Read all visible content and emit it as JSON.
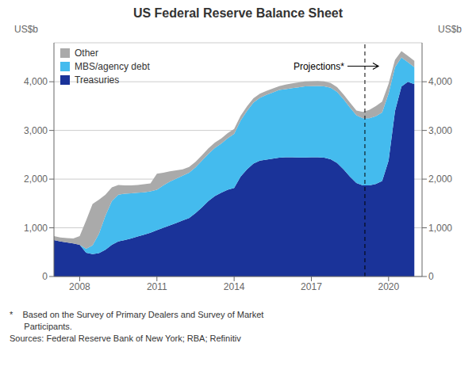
{
  "chart_data": {
    "type": "area",
    "stacked": true,
    "title": "US Federal Reserve Balance Sheet",
    "ylabel": "US$b",
    "y2label": "US$b",
    "x": [
      2007.0,
      2007.25,
      2007.5,
      2007.75,
      2008.0,
      2008.25,
      2008.5,
      2008.75,
      2009.0,
      2009.25,
      2009.5,
      2009.75,
      2010.0,
      2010.25,
      2010.5,
      2010.75,
      2011.0,
      2011.25,
      2011.5,
      2011.75,
      2012.0,
      2012.25,
      2012.5,
      2012.75,
      2013.0,
      2013.25,
      2013.5,
      2013.75,
      2014.0,
      2014.25,
      2014.5,
      2014.75,
      2015.0,
      2015.25,
      2015.5,
      2015.75,
      2016.0,
      2016.25,
      2016.5,
      2016.75,
      2017.0,
      2017.25,
      2017.5,
      2017.75,
      2018.0,
      2018.25,
      2018.5,
      2018.75,
      2019.0,
      2019.25,
      2019.5,
      2019.75,
      2020.0,
      2020.25,
      2020.5,
      2020.75,
      2021.0
    ],
    "series": [
      {
        "name": "Treasuries",
        "color": "#1A3399",
        "values": [
          750,
          720,
          700,
          680,
          650,
          490,
          460,
          480,
          550,
          650,
          720,
          750,
          780,
          820,
          860,
          900,
          950,
          1000,
          1050,
          1100,
          1150,
          1200,
          1300,
          1420,
          1550,
          1650,
          1720,
          1780,
          1820,
          2050,
          2200,
          2320,
          2380,
          2400,
          2420,
          2440,
          2450,
          2450,
          2445,
          2445,
          2450,
          2450,
          2440,
          2410,
          2330,
          2200,
          2050,
          1920,
          1870,
          1870,
          1900,
          1960,
          2380,
          3400,
          3900,
          4000,
          3950
        ]
      },
      {
        "name": "MBS/agency debt",
        "color": "#44BBEE",
        "values": [
          0,
          0,
          0,
          0,
          0,
          80,
          180,
          400,
          700,
          900,
          960,
          950,
          930,
          900,
          870,
          850,
          830,
          870,
          900,
          910,
          920,
          930,
          940,
          960,
          970,
          990,
          1010,
          1060,
          1110,
          1150,
          1200,
          1250,
          1290,
          1330,
          1360,
          1390,
          1400,
          1420,
          1440,
          1460,
          1460,
          1465,
          1465,
          1465,
          1460,
          1440,
          1420,
          1390,
          1380,
          1380,
          1390,
          1410,
          1380,
          900,
          600,
          400,
          350
        ]
      },
      {
        "name": "Other",
        "color": "#AAAAAA",
        "values": [
          80,
          80,
          90,
          100,
          180,
          580,
          850,
          700,
          430,
          280,
          200,
          170,
          160,
          160,
          165,
          160,
          330,
          260,
          210,
          170,
          130,
          120,
          115,
          110,
          110,
          110,
          105,
          105,
          100,
          100,
          95,
          90,
          85,
          80,
          80,
          80,
          90,
          95,
          100,
          100,
          100,
          100,
          100,
          100,
          100,
          100,
          100,
          100,
          130,
          170,
          210,
          220,
          200,
          150,
          130,
          130,
          130
        ]
      }
    ],
    "xlim": [
      2007.0,
      2021.3
    ],
    "xticks": [
      2008,
      2011,
      2014,
      2017,
      2020
    ],
    "ylim": [
      0,
      4800
    ],
    "yticks": [
      0,
      {
        "value": 1000,
        "label": "1,000"
      },
      {
        "value": 2000,
        "label": "2,000"
      },
      {
        "value": 3000,
        "label": "3,000"
      },
      {
        "value": 4000,
        "label": "4,000"
      }
    ],
    "y2lim": [
      0,
      4800
    ],
    "y2ticks": [
      0,
      {
        "value": 1000,
        "label": "1,000"
      },
      {
        "value": 2000,
        "label": "2,000"
      },
      {
        "value": 3000,
        "label": "3,000"
      },
      {
        "value": 4000,
        "label": "4,000"
      }
    ],
    "grid": true,
    "legend": "upper left",
    "annotations": [
      {
        "text": "Projections*",
        "x": 2019.08,
        "y": 4320
      }
    ],
    "footnotes": [
      "*    Based on the Survey of Primary Dealers and Survey of Market",
      "      Participants.",
      "Sources: Federal Reserve Bank of New York; RBA; Refinitiv"
    ]
  }
}
